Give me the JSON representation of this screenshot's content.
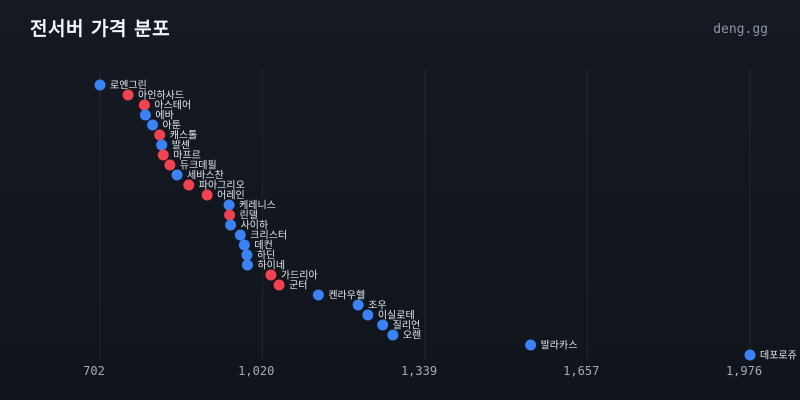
{
  "header": {
    "title": "전서버 가격 분포",
    "brand": "deng.gg"
  },
  "chart_data": {
    "type": "scatter",
    "title": "전서버 가격 분포",
    "xlabel": "",
    "ylabel": "",
    "xlim": [
      702,
      1976
    ],
    "x_ticks": [
      702,
      1020,
      1339,
      1657,
      1976
    ],
    "x_tick_labels": [
      "702",
      "1,020",
      "1,339",
      "1,657",
      "1,976"
    ],
    "grid": true,
    "colors": {
      "blue": "#3b82f6",
      "red": "#f0424f"
    },
    "points": [
      {
        "name": "로엔그린",
        "value": 702,
        "color": "blue"
      },
      {
        "name": "아인하사드",
        "value": 757,
        "color": "red"
      },
      {
        "name": "아스테어",
        "value": 789,
        "color": "red"
      },
      {
        "name": "에바",
        "value": 791,
        "color": "blue"
      },
      {
        "name": "아툰",
        "value": 805,
        "color": "blue"
      },
      {
        "name": "캐스톨",
        "value": 819,
        "color": "red"
      },
      {
        "name": "발센",
        "value": 823,
        "color": "blue"
      },
      {
        "name": "마프르",
        "value": 826,
        "color": "red"
      },
      {
        "name": "듀크데필",
        "value": 839,
        "color": "red"
      },
      {
        "name": "세바스찬",
        "value": 853,
        "color": "blue"
      },
      {
        "name": "파아그리오",
        "value": 876,
        "color": "red"
      },
      {
        "name": "어레인",
        "value": 912,
        "color": "red"
      },
      {
        "name": "케레니스",
        "value": 955,
        "color": "blue"
      },
      {
        "name": "린델",
        "value": 956,
        "color": "red"
      },
      {
        "name": "사이하",
        "value": 958,
        "color": "blue"
      },
      {
        "name": "크리스터",
        "value": 977,
        "color": "blue"
      },
      {
        "name": "데컨",
        "value": 985,
        "color": "blue"
      },
      {
        "name": "하딘",
        "value": 990,
        "color": "blue"
      },
      {
        "name": "하이네",
        "value": 991,
        "color": "blue"
      },
      {
        "name": "가드리아",
        "value": 1037,
        "color": "red"
      },
      {
        "name": "군터",
        "value": 1053,
        "color": "red"
      },
      {
        "name": "켄라우헬",
        "value": 1130,
        "color": "blue"
      },
      {
        "name": "조우",
        "value": 1208,
        "color": "blue"
      },
      {
        "name": "이실로테",
        "value": 1227,
        "color": "blue"
      },
      {
        "name": "질리언",
        "value": 1256,
        "color": "blue"
      },
      {
        "name": "오렌",
        "value": 1276,
        "color": "blue"
      },
      {
        "name": "발라카스",
        "value": 1546,
        "color": "blue"
      },
      {
        "name": "데포로쥬",
        "value": 1976,
        "color": "blue"
      }
    ]
  }
}
